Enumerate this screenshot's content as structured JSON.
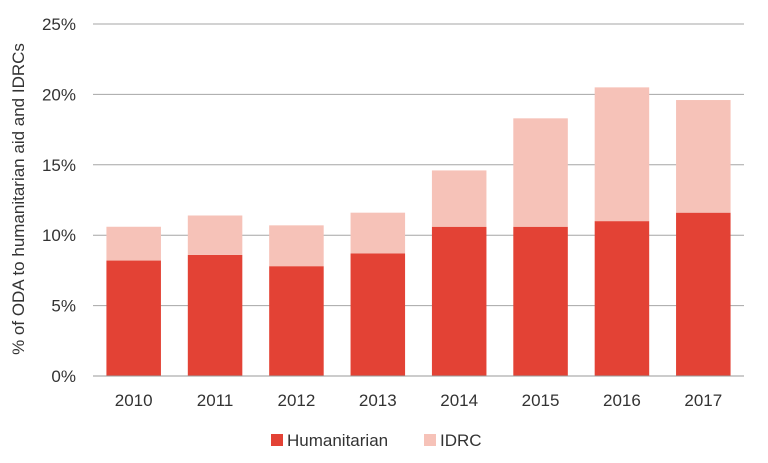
{
  "chart_data": {
    "type": "bar",
    "stacked": true,
    "title": "",
    "xlabel": "",
    "ylabel": "% of ODA to humanitarian aid and IDRCs",
    "categories": [
      "2010",
      "2011",
      "2012",
      "2013",
      "2014",
      "2015",
      "2016",
      "2017"
    ],
    "series": [
      {
        "name": "Humanitarian",
        "color": "#e34235",
        "values": [
          8.2,
          8.6,
          7.8,
          8.7,
          10.6,
          10.6,
          11.0,
          11.6
        ]
      },
      {
        "name": "IDRC",
        "color": "#f6c2b8",
        "values": [
          2.4,
          2.8,
          2.9,
          2.9,
          4.0,
          7.7,
          9.5,
          8.0
        ]
      }
    ],
    "ylim": [
      0,
      25
    ],
    "yticks": [
      0,
      5,
      10,
      15,
      20,
      25
    ],
    "ytick_labels": [
      "0%",
      "5%",
      "10%",
      "15%",
      "20%",
      "25%"
    ],
    "grid": true,
    "legend_position": "bottom"
  }
}
